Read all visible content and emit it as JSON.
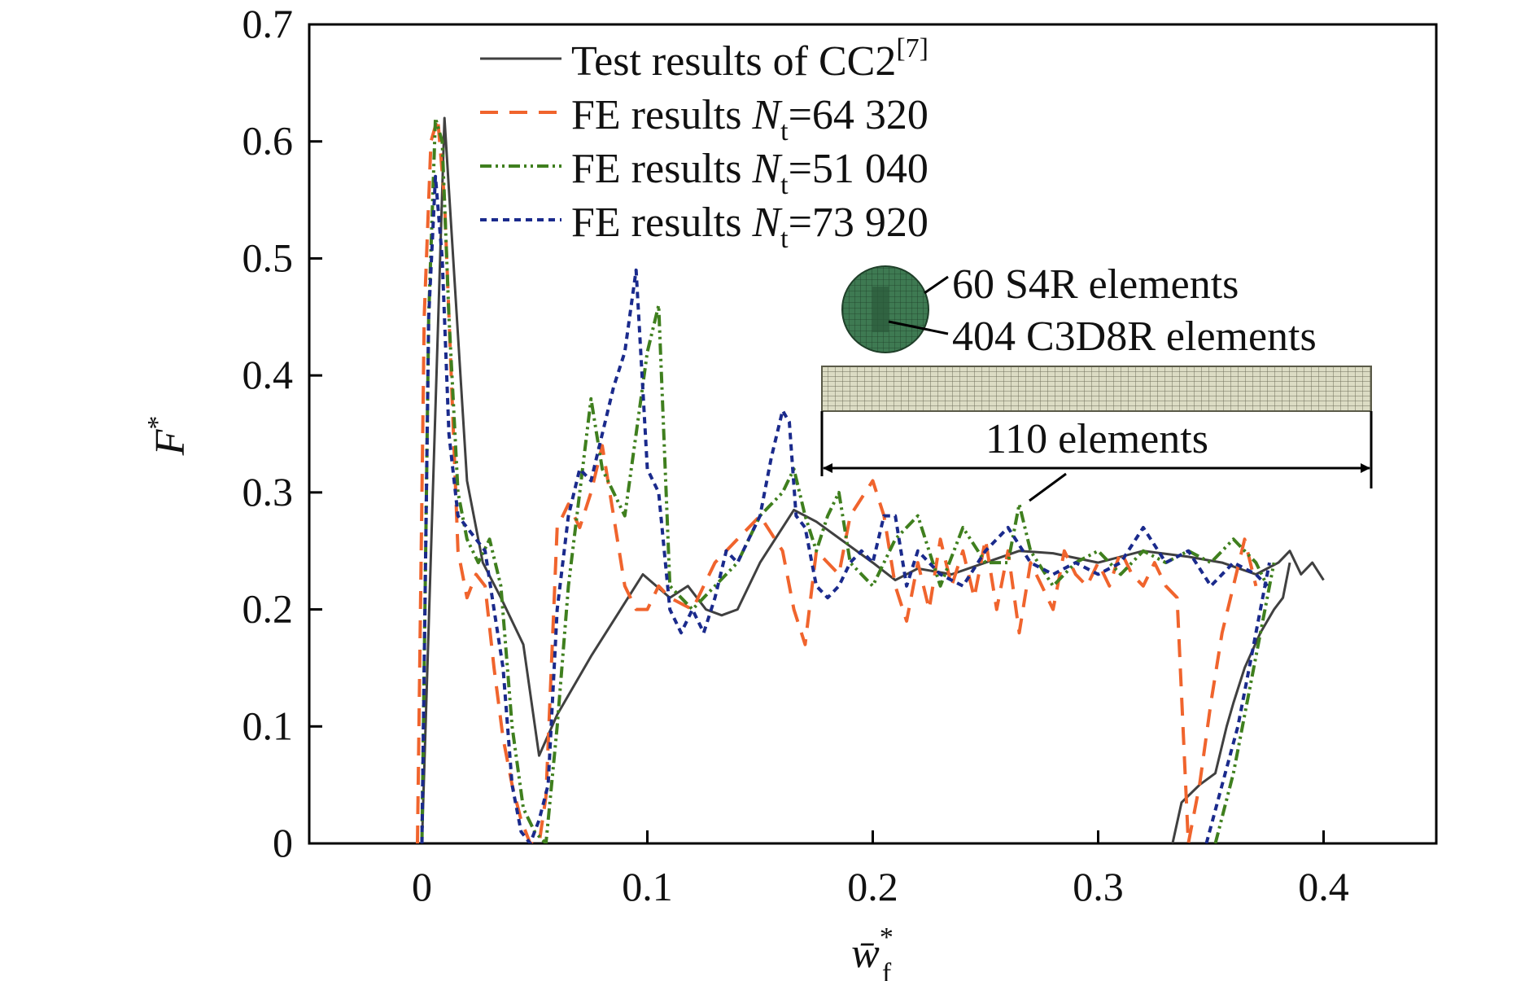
{
  "chart_data": {
    "type": "line",
    "xlabel": {
      "base": "w̄",
      "sup": "*",
      "sub": "f"
    },
    "ylabel": {
      "base": "F",
      "sup": "*"
    },
    "xlim": [
      -0.05,
      0.45
    ],
    "ylim": [
      0,
      0.7
    ],
    "xticks": [
      "0",
      "0.1",
      "0.2",
      "0.3",
      "0.4"
    ],
    "yticks": [
      "0",
      "0.1",
      "0.2",
      "0.3",
      "0.4",
      "0.5",
      "0.6",
      "0.7"
    ],
    "grid": false,
    "legend_position": "top-left",
    "series": [
      {
        "name": "Test results of CC2",
        "legend_sup": "[7]",
        "color": "#404040",
        "dash": "solid",
        "x": [
          0.0,
          0.01,
          0.02,
          0.027,
          0.035,
          0.045,
          0.052,
          0.06,
          0.075,
          0.098,
          0.11,
          0.118,
          0.126,
          0.133,
          0.14,
          0.15,
          0.165,
          0.175,
          0.2,
          0.21,
          0.22,
          0.235,
          0.25,
          0.265,
          0.28,
          0.3,
          0.32,
          0.34,
          0.355,
          0.37,
          0.38,
          0.385,
          0.39,
          0.395,
          0.4
        ],
        "y": [
          0.0,
          0.62,
          0.31,
          0.24,
          0.21,
          0.17,
          0.075,
          0.11,
          0.16,
          0.23,
          0.21,
          0.22,
          0.2,
          0.195,
          0.2,
          0.24,
          0.285,
          0.275,
          0.24,
          0.225,
          0.235,
          0.23,
          0.24,
          0.25,
          0.248,
          0.24,
          0.25,
          0.245,
          0.24,
          0.23,
          0.24,
          0.25,
          0.23,
          0.24,
          0.225
        ]
      },
      {
        "name": "Test results of CC2 (unloading branch)",
        "hidden_in_legend": true,
        "color": "#404040",
        "dash": "solid",
        "x": [
          0.333,
          0.337,
          0.345,
          0.352,
          0.357,
          0.36,
          0.365,
          0.372,
          0.378,
          0.382,
          0.385
        ],
        "y": [
          0.0,
          0.035,
          0.05,
          0.06,
          0.1,
          0.12,
          0.15,
          0.18,
          0.2,
          0.21,
          0.24
        ]
      },
      {
        "name": "FE results Nt=64 320",
        "legend_prefix": "FE results ",
        "legend_var": "N",
        "legend_sub": "t",
        "legend_value": "=64 320",
        "color": "#f0642d",
        "dash": "22,14",
        "x": [
          -0.002,
          0.001,
          0.004,
          0.007,
          0.01,
          0.013,
          0.016,
          0.02,
          0.024,
          0.028,
          0.032,
          0.036,
          0.04,
          0.044,
          0.048,
          0.052,
          0.055,
          0.06,
          0.065,
          0.07,
          0.075,
          0.08,
          0.085,
          0.09,
          0.095,
          0.1,
          0.105,
          0.11,
          0.12,
          0.13,
          0.14,
          0.15,
          0.16,
          0.165,
          0.17,
          0.175,
          0.18,
          0.185,
          0.19,
          0.2,
          0.205,
          0.21,
          0.215,
          0.22,
          0.225,
          0.23,
          0.235,
          0.24,
          0.245,
          0.25,
          0.255,
          0.26,
          0.265,
          0.27,
          0.275,
          0.28,
          0.285,
          0.29,
          0.295,
          0.3,
          0.305,
          0.31,
          0.315,
          0.32,
          0.325,
          0.33,
          0.335,
          0.34,
          0.345,
          0.35,
          0.355,
          0.36,
          0.365,
          0.37
        ],
        "y": [
          0.0,
          0.45,
          0.6,
          0.62,
          0.55,
          0.4,
          0.25,
          0.21,
          0.23,
          0.22,
          0.15,
          0.09,
          0.05,
          0.02,
          0.0,
          0.0,
          0.04,
          0.27,
          0.29,
          0.27,
          0.3,
          0.34,
          0.28,
          0.22,
          0.2,
          0.2,
          0.22,
          0.21,
          0.2,
          0.24,
          0.26,
          0.28,
          0.25,
          0.2,
          0.17,
          0.25,
          0.24,
          0.23,
          0.28,
          0.31,
          0.28,
          0.22,
          0.19,
          0.24,
          0.2,
          0.26,
          0.22,
          0.25,
          0.21,
          0.26,
          0.2,
          0.25,
          0.18,
          0.24,
          0.22,
          0.2,
          0.25,
          0.23,
          0.22,
          0.24,
          0.22,
          0.25,
          0.23,
          0.22,
          0.24,
          0.22,
          0.21,
          0.0,
          0.05,
          0.12,
          0.18,
          0.22,
          0.26,
          0.22
        ]
      },
      {
        "name": "FE results Nt=51 040",
        "legend_prefix": "FE results ",
        "legend_var": "N",
        "legend_sub": "t",
        "legend_value": "=51 040",
        "color": "#3f7f1e",
        "dash": "14,5,3,5,3,5",
        "x": [
          0.0,
          0.003,
          0.006,
          0.009,
          0.012,
          0.016,
          0.02,
          0.025,
          0.03,
          0.035,
          0.04,
          0.045,
          0.05,
          0.055,
          0.06,
          0.065,
          0.07,
          0.075,
          0.08,
          0.085,
          0.09,
          0.095,
          0.1,
          0.105,
          0.11,
          0.12,
          0.13,
          0.14,
          0.15,
          0.16,
          0.165,
          0.17,
          0.175,
          0.18,
          0.185,
          0.19,
          0.2,
          0.21,
          0.22,
          0.23,
          0.24,
          0.25,
          0.26,
          0.265,
          0.27,
          0.28,
          0.29,
          0.3,
          0.31,
          0.32,
          0.33,
          0.34,
          0.35,
          0.36,
          0.37,
          0.375
        ],
        "y": [
          0.0,
          0.45,
          0.62,
          0.6,
          0.45,
          0.3,
          0.26,
          0.24,
          0.26,
          0.22,
          0.1,
          0.03,
          0.01,
          0.0,
          0.1,
          0.22,
          0.3,
          0.38,
          0.32,
          0.3,
          0.28,
          0.35,
          0.42,
          0.46,
          0.22,
          0.2,
          0.22,
          0.24,
          0.28,
          0.3,
          0.32,
          0.28,
          0.25,
          0.28,
          0.3,
          0.24,
          0.22,
          0.26,
          0.28,
          0.22,
          0.27,
          0.24,
          0.24,
          0.29,
          0.25,
          0.22,
          0.24,
          0.25,
          0.23,
          0.25,
          0.24,
          0.25,
          0.24,
          0.26,
          0.24,
          0.22
        ]
      },
      {
        "name": "FE results Nt=51 040 (unloading branch)",
        "hidden_in_legend": true,
        "color": "#3f7f1e",
        "dash": "14,5,3,5,3,5",
        "x": [
          0.352,
          0.36,
          0.368,
          0.374,
          0.378
        ],
        "y": [
          0.0,
          0.06,
          0.14,
          0.2,
          0.24
        ]
      },
      {
        "name": "FE results Nt=73 920",
        "legend_prefix": "FE results ",
        "legend_var": "N",
        "legend_sub": "t",
        "legend_value": "=73 920",
        "color": "#1a2a8c",
        "dash": "8,6",
        "x": [
          0.0,
          0.003,
          0.006,
          0.009,
          0.012,
          0.016,
          0.02,
          0.024,
          0.028,
          0.032,
          0.036,
          0.04,
          0.044,
          0.048,
          0.052,
          0.056,
          0.06,
          0.065,
          0.07,
          0.075,
          0.08,
          0.085,
          0.09,
          0.095,
          0.1,
          0.105,
          0.11,
          0.115,
          0.12,
          0.125,
          0.13,
          0.135,
          0.14,
          0.145,
          0.15,
          0.155,
          0.16,
          0.163,
          0.166,
          0.17,
          0.175,
          0.18,
          0.185,
          0.19,
          0.195,
          0.2,
          0.205,
          0.21,
          0.215,
          0.22,
          0.23,
          0.24,
          0.25,
          0.26,
          0.27,
          0.28,
          0.29,
          0.3,
          0.31,
          0.32,
          0.33,
          0.34,
          0.35,
          0.36,
          0.37,
          0.375
        ],
        "y": [
          0.0,
          0.45,
          0.57,
          0.5,
          0.35,
          0.28,
          0.27,
          0.26,
          0.25,
          0.2,
          0.15,
          0.05,
          0.01,
          0.0,
          0.02,
          0.05,
          0.2,
          0.28,
          0.32,
          0.31,
          0.35,
          0.39,
          0.42,
          0.49,
          0.32,
          0.3,
          0.2,
          0.18,
          0.2,
          0.18,
          0.21,
          0.25,
          0.24,
          0.26,
          0.28,
          0.33,
          0.37,
          0.36,
          0.28,
          0.27,
          0.22,
          0.21,
          0.22,
          0.24,
          0.25,
          0.24,
          0.28,
          0.28,
          0.22,
          0.25,
          0.23,
          0.22,
          0.25,
          0.27,
          0.24,
          0.23,
          0.24,
          0.23,
          0.24,
          0.27,
          0.24,
          0.25,
          0.22,
          0.24,
          0.23,
          0.22
        ]
      },
      {
        "name": "FE results Nt=73 920 (unloading branch)",
        "hidden_in_legend": true,
        "color": "#1a2a8c",
        "dash": "8,6",
        "x": [
          0.348,
          0.355,
          0.362,
          0.368,
          0.372,
          0.376
        ],
        "y": [
          0.0,
          0.05,
          0.1,
          0.16,
          0.2,
          0.24
        ]
      }
    ],
    "annotations": {
      "shell_label": "60 S4R elements",
      "solid_label": "404 C3D8R elements",
      "length_label": "110 elements",
      "cross_section_color": "#3e7a52",
      "beam_mesh_color": "#dcdcc4"
    }
  }
}
